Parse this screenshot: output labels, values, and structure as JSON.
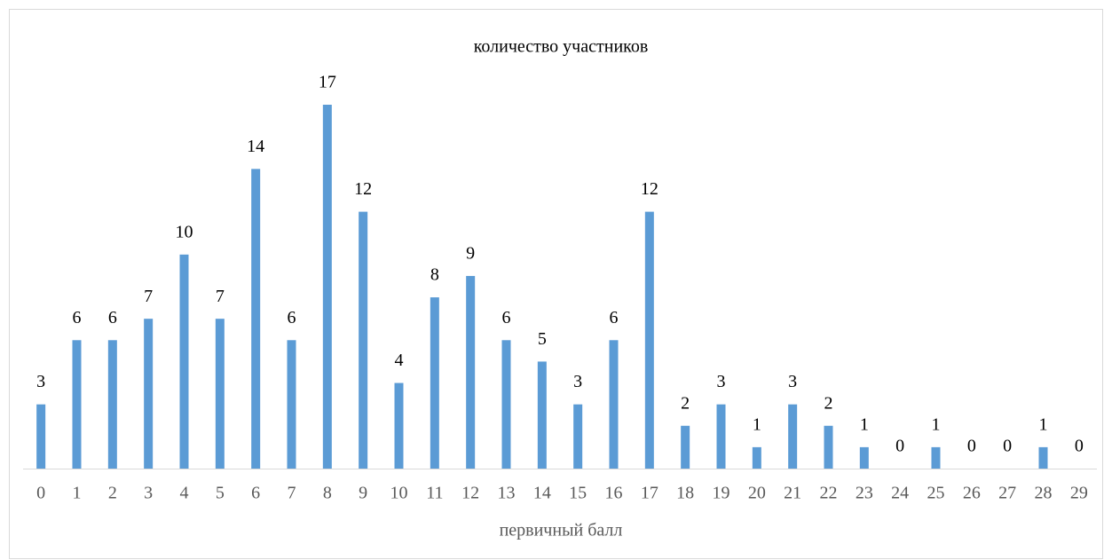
{
  "chart_data": {
    "type": "bar",
    "title": "количество участников",
    "x_label": "первичный балл",
    "categories": [
      "0",
      "1",
      "2",
      "3",
      "4",
      "5",
      "6",
      "7",
      "8",
      "9",
      "10",
      "11",
      "12",
      "13",
      "14",
      "15",
      "16",
      "17",
      "18",
      "19",
      "20",
      "21",
      "22",
      "23",
      "24",
      "25",
      "26",
      "27",
      "28",
      "29"
    ],
    "values": [
      3,
      6,
      6,
      7,
      10,
      7,
      14,
      6,
      17,
      12,
      4,
      8,
      9,
      6,
      5,
      3,
      6,
      12,
      2,
      3,
      1,
      3,
      2,
      1,
      0,
      1,
      0,
      0,
      1,
      0
    ],
    "color": "#5b9bd5",
    "grid": false,
    "data_labels": true
  }
}
